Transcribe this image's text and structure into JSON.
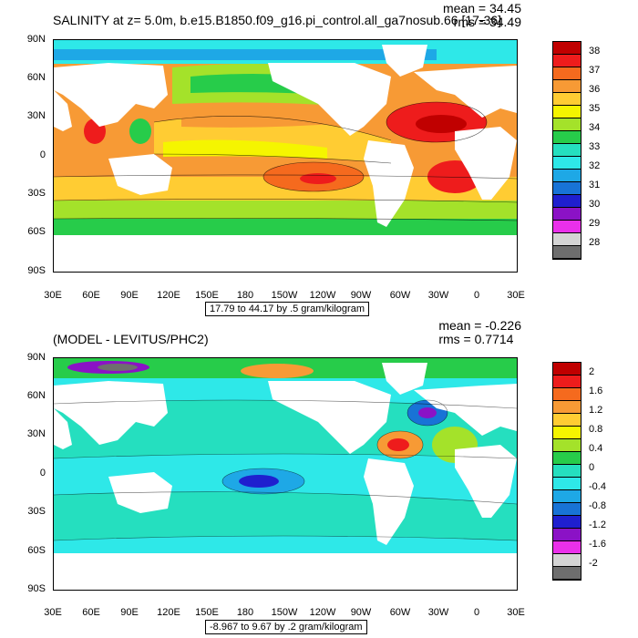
{
  "top": {
    "title": "SALINITY at z=    5.0m, b.e15.B1850.f09_g16.pi_control.all_ga7nosub.66 [17-36]",
    "mean": "mean = 34.45",
    "rms": "rms = 34.49",
    "footnote": "17.79 to 44.17 by .5 gram/kilogram",
    "colorbar": {
      "labels": [
        "38",
        "37",
        "36",
        "35",
        "34",
        "33",
        "32",
        "31",
        "30",
        "29",
        "28"
      ],
      "colors": [
        "#c00000",
        "#ee1c1c",
        "#f56a1e",
        "#f79a35",
        "#ffcc33",
        "#f5f500",
        "#a4e22a",
        "#27cc4a",
        "#25dfbf",
        "#2ee8e8",
        "#1ea8e6",
        "#1873d6",
        "#1f1fcf",
        "#8b12c6",
        "#ea30ea",
        "#d4d4d4",
        "#6e6e6e"
      ]
    }
  },
  "bottom": {
    "title": "(MODEL - LEVITUS/PHC2)",
    "mean": "mean = -0.226",
    "rms": "rms = 0.7714",
    "footnote": "-8.967 to 9.67 by .2 gram/kilogram",
    "colorbar": {
      "labels": [
        "2",
        "1.6",
        "1.2",
        "0.8",
        "0.4",
        "0",
        "-0.4",
        "-0.8",
        "-1.2",
        "-1.6",
        "-2"
      ],
      "colors": [
        "#c00000",
        "#ee1c1c",
        "#f56a1e",
        "#f79a35",
        "#ffcc33",
        "#f5f500",
        "#a4e22a",
        "#27cc4a",
        "#25dfbf",
        "#2ee8e8",
        "#1ea8e6",
        "#1873d6",
        "#1f1fcf",
        "#8b12c6",
        "#ea30ea",
        "#d4d4d4",
        "#6e6e6e"
      ]
    }
  },
  "lat_labels": [
    "90N",
    "60N",
    "30N",
    "0",
    "30S",
    "60S",
    "90S"
  ],
  "lon_labels": [
    "30E",
    "60E",
    "90E",
    "120E",
    "150E",
    "180",
    "150W",
    "120W",
    "90W",
    "60W",
    "30W",
    "0",
    "30E"
  ]
}
